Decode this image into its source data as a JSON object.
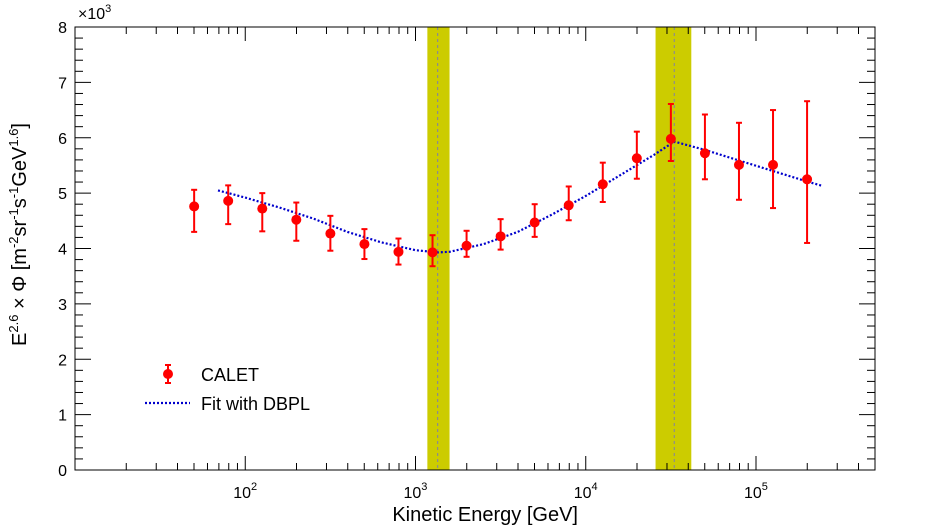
{
  "chart_data": {
    "type": "scatter",
    "title": "",
    "xlabel": "Kinetic Energy [GeV]",
    "ylabel": "E^{2.6} × Φ [m^{-2}sr^{-1}s^{-1}GeV^{1.6}]",
    "ylabel_parts": {
      "pre": "E",
      "pre_sup": "2.6",
      "times": " × Φ [m",
      "sup1": "-2",
      "t2": "sr",
      "sup2": "-1",
      "t3": "s",
      "sup3": "-1",
      "t4": "GeV",
      "sup4": "1.6",
      "post": "]"
    },
    "x_scale": "log",
    "xlim": [
      10,
      500000
    ],
    "ylim": [
      0,
      8
    ],
    "y_multiplier": "×10",
    "y_multiplier_exp": "3",
    "x_ticks": [
      {
        "value": 100,
        "base": "10",
        "exp": "2"
      },
      {
        "value": 1000,
        "base": "10",
        "exp": "3"
      },
      {
        "value": 10000,
        "base": "10",
        "exp": "4"
      },
      {
        "value": 100000,
        "base": "10",
        "exp": "5"
      }
    ],
    "y_ticks": [
      "0",
      "1",
      "2",
      "3",
      "4",
      "5",
      "6",
      "7",
      "8"
    ],
    "series": [
      {
        "name": "CALET",
        "color": "#ff0000",
        "x": [
          50.1,
          79.4,
          125.9,
          199.5,
          316.2,
          501.2,
          794.3,
          1258.9,
          1995.3,
          3162.3,
          5011.9,
          7943.3,
          12589,
          19953,
          31623,
          50119,
          79433,
          125893,
          199526
        ],
        "y": [
          4.76,
          4.86,
          4.72,
          4.52,
          4.27,
          4.08,
          3.94,
          3.93,
          4.05,
          4.22,
          4.47,
          4.78,
          5.16,
          5.63,
          5.98,
          5.72,
          5.51,
          5.51,
          5.25
        ],
        "err_low": [
          0.46,
          0.42,
          0.41,
          0.38,
          0.31,
          0.27,
          0.23,
          0.25,
          0.2,
          0.24,
          0.26,
          0.27,
          0.32,
          0.37,
          0.4,
          0.47,
          0.63,
          0.78,
          1.15
        ],
        "err_high": [
          0.3,
          0.28,
          0.28,
          0.31,
          0.32,
          0.27,
          0.24,
          0.31,
          0.27,
          0.31,
          0.33,
          0.34,
          0.39,
          0.48,
          0.63,
          0.7,
          0.76,
          0.99,
          1.41
        ]
      },
      {
        "name": "Fit with DBPL",
        "color": "#0000cc",
        "x": [
          69.2,
          100,
          158.5,
          251.2,
          398.1,
          631,
          1000,
          1348.7,
          1584.9,
          2511.9,
          3981.1,
          6309.6,
          10000,
          15849,
          25119,
          33113,
          50119,
          79433,
          125893,
          199526,
          245471
        ],
        "y": [
          5.05,
          4.92,
          4.74,
          4.54,
          4.3,
          4.11,
          3.97,
          3.93,
          3.94,
          4.08,
          4.3,
          4.61,
          4.95,
          5.32,
          5.69,
          5.93,
          5.78,
          5.59,
          5.4,
          5.21,
          5.13
        ]
      }
    ],
    "bands": [
      {
        "center": 1348.7,
        "xmin": 1174,
        "xmax": 1585,
        "color": "#cccc00"
      },
      {
        "center": 33113,
        "xmin": 25704,
        "xmax": 41687,
        "color": "#cccc00"
      }
    ],
    "legend": {
      "position": "lower-left",
      "entries": [
        "CALET",
        "Fit with DBPL"
      ]
    }
  }
}
